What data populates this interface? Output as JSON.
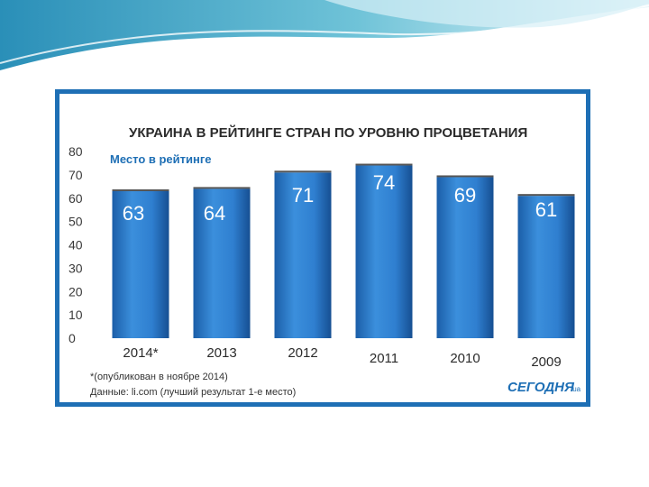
{
  "chart_data": {
    "type": "bar",
    "title": "УКРАИНА В РЕЙТИНГЕ СТРАН ПО УРОВНЮ ПРОЦВЕТАНИЯ",
    "subtitle": "Место в рейтинге",
    "categories": [
      "2014*",
      "2013",
      "2012",
      "2011",
      "2010",
      "2009"
    ],
    "values": [
      63,
      64,
      71,
      74,
      69,
      61
    ],
    "data_labels": [
      "63",
      "64",
      "71",
      "74",
      "69",
      "61"
    ],
    "y_ticks": [
      "0",
      "10",
      "20",
      "30",
      "40",
      "50",
      "60",
      "70",
      "80"
    ],
    "ylim": [
      0,
      80
    ],
    "grid": false,
    "legend": "none",
    "bar_color": "#2f7fd0",
    "annotations": {
      "footnote": "*(опубликован в ноябре 2014)",
      "source": "Данные: li.com (лучший результат 1-е место)"
    }
  },
  "brand": {
    "name": "СЕГОДНЯ",
    "suffix": ".ua"
  },
  "colors": {
    "frame": "#1e6fb5",
    "wave_dark": "#2a8fb8",
    "wave_light": "#bfe6ef"
  }
}
